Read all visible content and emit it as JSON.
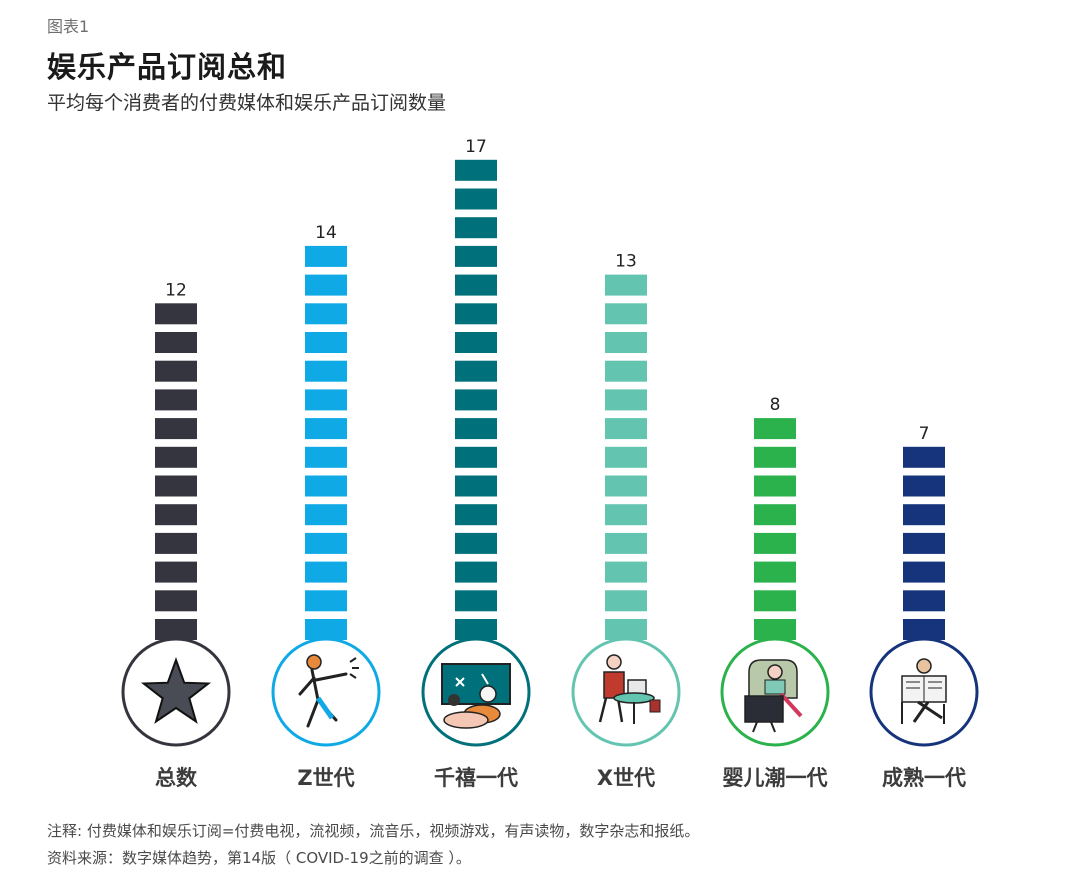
{
  "header": {
    "figure_label": "图表1",
    "title": "娱乐产品订阅总和",
    "subtitle": "平均每个消费者的付费媒体和娱乐产品订阅数量"
  },
  "chart_data": {
    "type": "bar",
    "categories": [
      "总数",
      "Z世代",
      "千禧一代",
      "X世代",
      "婴儿潮一代",
      "成熟一代"
    ],
    "values": [
      12,
      14,
      17,
      13,
      8,
      7
    ],
    "colors": [
      "#34353f",
      "#0fa9e6",
      "#00707a",
      "#63c5b0",
      "#2bb24c",
      "#15347c"
    ],
    "icons": [
      "star-icon",
      "dancing-person-icon",
      "gaming-couple-icon",
      "laptop-woman-icon",
      "armchair-tv-woman-icon",
      "newspaper-reader-icon"
    ],
    "title": "娱乐产品订阅总和",
    "subtitle": "平均每个消费者的付费媒体和娱乐产品订阅数量",
    "xlabel": "",
    "ylabel": "",
    "ylim": [
      0,
      17
    ],
    "grid": false,
    "legend": "none"
  },
  "footer": {
    "note": "注释: 付费媒体和娱乐订阅=付费电视，流视频，流音乐，视频游戏，有声读物，数字杂志和报纸。",
    "source": "资料来源：数字媒体趋势，第14版（ COVID-19之前的调查 ）。"
  }
}
